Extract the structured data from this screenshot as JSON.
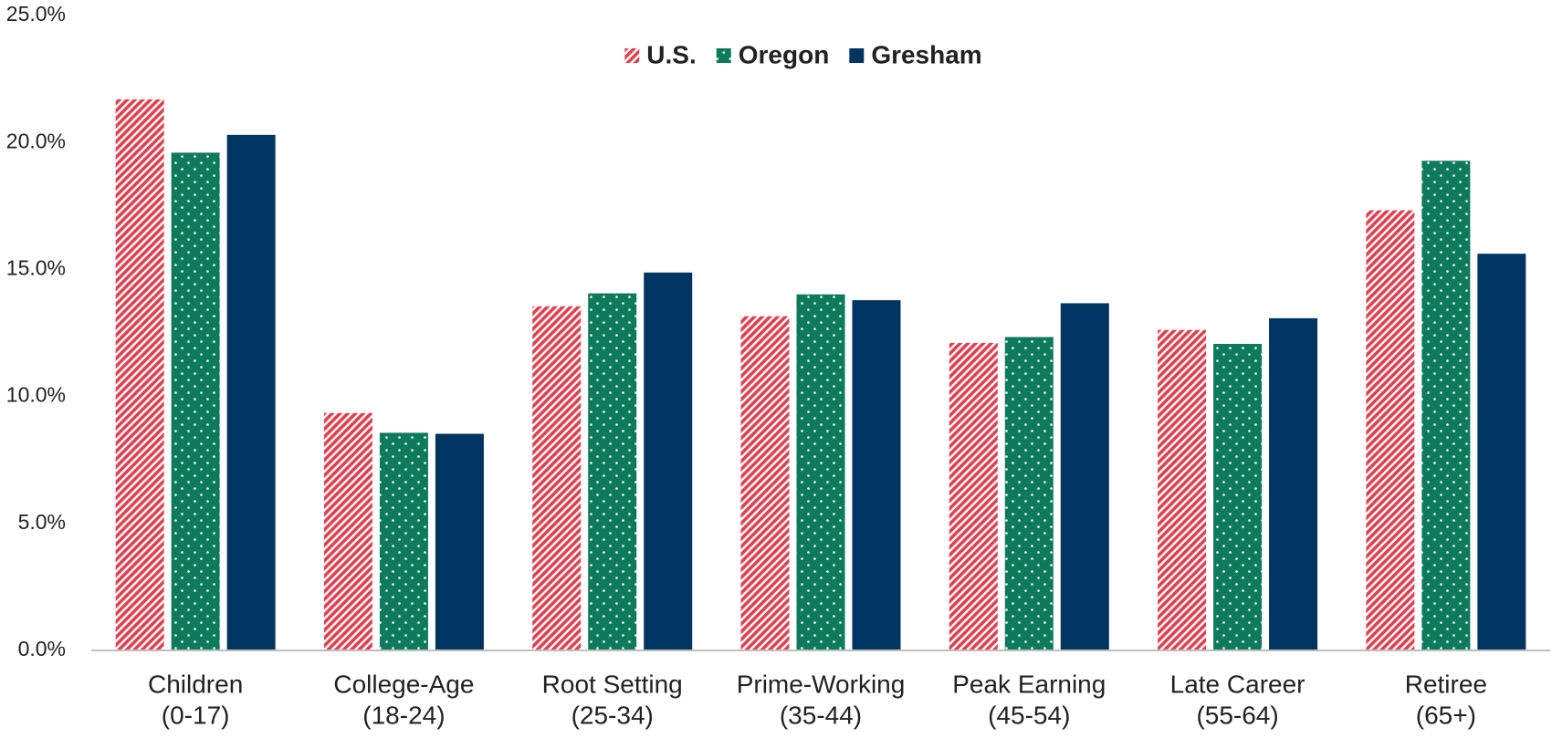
{
  "chart_data": {
    "type": "bar",
    "categories": [
      [
        "Children",
        "(0-17)"
      ],
      [
        "College-Age",
        "(18-24)"
      ],
      [
        "Root Setting",
        "(25-34)"
      ],
      [
        "Prime-Working",
        "(35-44)"
      ],
      [
        "Peak Earning",
        "(45-54)"
      ],
      [
        "Late Career",
        "(55-64)"
      ],
      [
        "Retiree",
        "(65+)"
      ]
    ],
    "series": [
      {
        "name": "U.S.",
        "color": "#e0404f",
        "pattern": "hatch",
        "values": [
          21.7,
          9.35,
          13.55,
          13.16,
          12.11,
          12.62,
          17.33
        ]
      },
      {
        "name": "Oregon",
        "color": "#0e7a5c",
        "pattern": "dots",
        "values": [
          19.6,
          8.57,
          14.06,
          14.02,
          12.34,
          12.07,
          19.28
        ]
      },
      {
        "name": "Gresham",
        "color": "#003561",
        "pattern": "solid",
        "values": [
          20.3,
          8.53,
          14.88,
          13.79,
          13.67,
          13.08,
          15.62
        ]
      }
    ],
    "ylim": [
      0,
      25
    ],
    "yticks": [
      {
        "value": 0,
        "label": "0.0%"
      },
      {
        "value": 5,
        "label": "5.0%"
      },
      {
        "value": 10,
        "label": "10.0%"
      },
      {
        "value": 15,
        "label": "15.0%"
      },
      {
        "value": 20,
        "label": "20.0%"
      },
      {
        "value": 25,
        "label": "25.0%"
      }
    ],
    "grid": false,
    "legend": "top"
  }
}
